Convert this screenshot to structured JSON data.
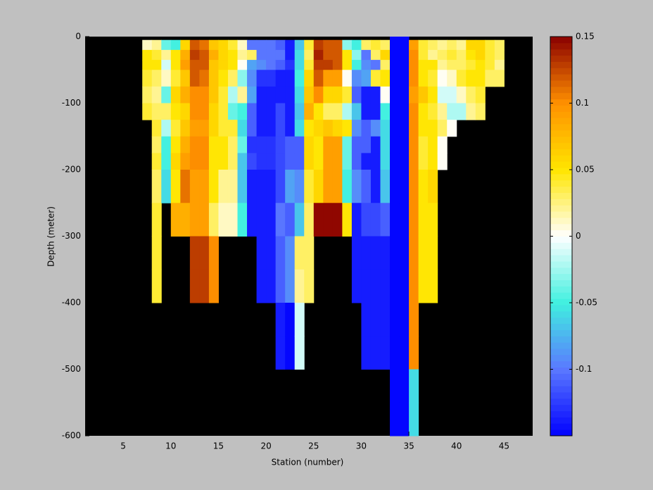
{
  "chart_data": {
    "type": "heatmap",
    "x_label": "Station (number)",
    "y_label": "Depth (meter)",
    "xlim": [
      1,
      48
    ],
    "xticks": [
      5,
      10,
      15,
      20,
      25,
      30,
      35,
      40,
      45
    ],
    "ylim": [
      -600,
      0
    ],
    "yticks": [
      0,
      -100,
      -200,
      -300,
      -400,
      -500,
      -600
    ],
    "clim": [
      -0.15,
      0.15
    ],
    "cticks": [
      0.15,
      0.1,
      0.05,
      0,
      -0.05,
      -0.1
    ],
    "colormap": [
      "#0000ff",
      "#5a78ff",
      "#40f0e0",
      "#ffffff",
      "#ffe600",
      "#ff9000",
      "#8b0000"
    ],
    "background": "#000000",
    "xbins": [
      7,
      8,
      9,
      10,
      11,
      12,
      13,
      14,
      15,
      16,
      17,
      18,
      19,
      20,
      21,
      22,
      23,
      24,
      25,
      26,
      27,
      28,
      29,
      30,
      31,
      32,
      33,
      34,
      35,
      36,
      37,
      38,
      39,
      40,
      41,
      42,
      43,
      44,
      45
    ],
    "ybins": [
      0,
      -5,
      -20,
      -35,
      -50,
      -75,
      -100,
      -125,
      -150,
      -175,
      -200,
      -250,
      -300,
      -350,
      -400,
      -450,
      -500,
      -550,
      -600
    ],
    "z": [
      [
        null,
        0.01,
        0.05,
        0.05,
        0.04,
        0.03,
        0.04,
        null,
        null,
        null,
        null,
        null,
        null,
        null,
        null,
        null,
        null,
        null
      ],
      [
        null,
        0.02,
        0.04,
        0.05,
        0.03,
        0.02,
        0.03,
        0.04,
        0.03,
        0.04,
        0.03,
        0.04,
        0.04,
        0.04,
        null,
        null,
        null,
        null
      ],
      [
        null,
        -0.04,
        0.02,
        -0.01,
        0.01,
        -0.04,
        0.03,
        -0.02,
        -0.05,
        -0.05,
        -0.06,
        null,
        null,
        null,
        null,
        null,
        null,
        null
      ],
      [
        null,
        -0.05,
        0.05,
        0.05,
        0.04,
        0.06,
        0.05,
        0.04,
        0.05,
        0.06,
        0.05,
        0.08,
        null,
        null,
        null,
        null,
        null,
        null
      ],
      [
        null,
        0.06,
        0.08,
        0.09,
        0.07,
        0.08,
        0.06,
        0.07,
        0.08,
        0.09,
        0.11,
        0.08,
        null,
        null,
        null,
        null,
        null,
        null
      ],
      [
        null,
        0.12,
        0.13,
        0.12,
        0.12,
        0.1,
        0.1,
        0.09,
        0.1,
        0.1,
        0.09,
        0.09,
        0.13,
        0.13,
        null,
        null,
        null,
        null
      ],
      [
        null,
        0.11,
        0.12,
        0.12,
        0.11,
        0.1,
        0.1,
        0.09,
        0.1,
        0.1,
        0.09,
        0.09,
        0.13,
        0.13,
        null,
        null,
        null,
        null
      ],
      [
        null,
        0.07,
        0.08,
        0.07,
        0.07,
        0.07,
        0.06,
        0.06,
        0.05,
        0.05,
        0.05,
        0.03,
        0.1,
        0.1,
        null,
        null,
        null,
        null
      ],
      [
        null,
        0.06,
        0.06,
        0.06,
        0.05,
        0.04,
        0.04,
        0.04,
        0.05,
        0.05,
        0.02,
        0.01,
        null,
        null,
        null,
        null,
        null,
        null
      ],
      [
        null,
        0.04,
        0.05,
        0.05,
        0.03,
        -0.02,
        -0.04,
        0.04,
        0.03,
        0.03,
        0.02,
        0.01,
        null,
        null,
        null,
        null,
        null,
        null
      ],
      [
        null,
        0.01,
        0.02,
        0,
        -0.03,
        0.02,
        -0.05,
        -0.06,
        -0.04,
        -0.07,
        -0.07,
        -0.05,
        null,
        null,
        null,
        null,
        null,
        null
      ],
      [
        null,
        -0.1,
        0.03,
        -0.08,
        -0.09,
        -0.08,
        -0.11,
        -0.11,
        -0.13,
        -0.12,
        -0.14,
        -0.14,
        null,
        null,
        null,
        null,
        null,
        null
      ],
      [
        null,
        -0.1,
        -0.1,
        -0.09,
        -0.13,
        -0.14,
        -0.14,
        -0.14,
        -0.13,
        -0.13,
        -0.14,
        -0.14,
        -0.14,
        -0.14,
        null,
        null,
        null,
        null
      ],
      [
        null,
        -0.1,
        -0.1,
        -0.1,
        -0.13,
        -0.14,
        -0.14,
        -0.14,
        -0.13,
        -0.13,
        -0.14,
        -0.14,
        -0.14,
        -0.14,
        null,
        null,
        null,
        null
      ],
      [
        null,
        -0.11,
        -0.1,
        -0.11,
        -0.14,
        -0.14,
        -0.12,
        -0.12,
        -0.12,
        -0.12,
        -0.12,
        -0.1,
        -0.11,
        -0.11,
        -0.14,
        -0.14,
        null,
        null
      ],
      [
        null,
        -0.14,
        -0.14,
        -0.13,
        -0.14,
        -0.14,
        -0.14,
        -0.14,
        -0.11,
        -0.11,
        -0.08,
        -0.11,
        -0.09,
        -0.09,
        -0.15,
        -0.15,
        null,
        null
      ],
      [
        null,
        -0.07,
        -0.06,
        -0.06,
        -0.05,
        -0.06,
        -0.07,
        -0.06,
        -0.11,
        -0.11,
        -0.09,
        -0.07,
        0.03,
        0.02,
        -0.01,
        -0.01,
        null,
        null
      ],
      [
        null,
        0.04,
        0.03,
        0.04,
        0.06,
        0.07,
        0.08,
        0.05,
        0.06,
        0.06,
        0.04,
        0.03,
        0.03,
        0.03,
        null,
        null,
        null,
        null
      ],
      [
        null,
        0.13,
        0.14,
        0.13,
        0.12,
        0.1,
        0.05,
        0.06,
        0.05,
        0.05,
        0.06,
        0.15,
        null,
        null,
        null,
        null,
        null,
        null
      ],
      [
        null,
        0.12,
        0.12,
        0.13,
        0.09,
        0.06,
        0.03,
        0.07,
        0.09,
        0.09,
        0.09,
        0.15,
        null,
        null,
        null,
        null,
        null,
        null
      ],
      [
        null,
        0.12,
        0.12,
        0.12,
        0.09,
        0.06,
        0.03,
        0.06,
        0.09,
        0.09,
        0.09,
        0.15,
        null,
        null,
        null,
        null,
        null,
        null
      ],
      [
        null,
        -0.03,
        0.05,
        0.05,
        0,
        0.04,
        -0.02,
        0.05,
        -0.04,
        -0.04,
        -0.05,
        0.05,
        null,
        null,
        null,
        null,
        null,
        null
      ],
      [
        null,
        -0.05,
        -0.03,
        -0.05,
        -0.09,
        -0.11,
        -0.07,
        -0.09,
        -0.11,
        -0.11,
        -0.09,
        -0.14,
        -0.14,
        -0.14,
        null,
        null,
        null,
        null
      ],
      [
        null,
        0.03,
        -0.1,
        -0.09,
        -0.08,
        -0.14,
        -0.14,
        -0.11,
        -0.11,
        -0.14,
        -0.11,
        -0.12,
        -0.14,
        -0.14,
        -0.14,
        -0.14,
        null,
        null
      ],
      [
        null,
        0.04,
        0.03,
        -0.1,
        0.04,
        -0.14,
        -0.14,
        -0.09,
        -0.14,
        -0.14,
        -0.14,
        -0.12,
        -0.14,
        -0.14,
        -0.14,
        -0.14,
        null,
        null
      ],
      [
        null,
        0.03,
        0.06,
        0.03,
        0.05,
        0,
        -0.05,
        -0.06,
        -0.06,
        -0.06,
        -0.07,
        -0.11,
        -0.14,
        -0.14,
        -0.14,
        -0.14,
        null,
        null
      ],
      [
        -0.15,
        -0.15,
        -0.15,
        -0.15,
        -0.15,
        -0.15,
        -0.15,
        -0.15,
        -0.15,
        -0.15,
        -0.15,
        -0.15,
        -0.15,
        -0.15,
        -0.15,
        -0.15,
        -0.15,
        -0.15
      ],
      [
        -0.15,
        -0.15,
        -0.15,
        -0.15,
        -0.15,
        -0.15,
        -0.15,
        -0.15,
        -0.15,
        -0.15,
        -0.15,
        -0.15,
        -0.15,
        -0.15,
        -0.15,
        -0.15,
        -0.15,
        -0.15
      ],
      [
        null,
        0.09,
        0.1,
        0.1,
        0.1,
        0.09,
        0.1,
        0.1,
        0.1,
        0.1,
        0.1,
        0.1,
        0.1,
        0.1,
        0.1,
        0.1,
        -0.06,
        -0.06
      ],
      [
        null,
        0.04,
        0.04,
        0.05,
        0.05,
        0.07,
        0.05,
        0.05,
        0.04,
        0.04,
        0.05,
        0.05,
        0.05,
        0.05,
        null,
        null,
        null,
        null
      ],
      [
        null,
        0.03,
        0.02,
        0.05,
        0.04,
        0.05,
        0.04,
        0.05,
        0.05,
        0.05,
        0.06,
        0.05,
        0.05,
        0.05,
        null,
        null,
        null,
        null
      ],
      [
        null,
        0.02,
        0.03,
        0.02,
        0,
        -0.01,
        0.02,
        0.03,
        0,
        0,
        null,
        null,
        null,
        null,
        null,
        null,
        null,
        null
      ],
      [
        null,
        0.03,
        0.04,
        0.03,
        0.01,
        -0.01,
        -0.02,
        0,
        null,
        null,
        null,
        null,
        null,
        null,
        null,
        null,
        null,
        null
      ],
      [
        null,
        0.02,
        0.03,
        0.03,
        0.04,
        0.01,
        -0.02,
        null,
        null,
        null,
        null,
        null,
        null,
        null,
        null,
        null,
        null,
        null
      ],
      [
        null,
        0.06,
        0.05,
        0.04,
        0.05,
        0.03,
        0.02,
        null,
        null,
        null,
        null,
        null,
        null,
        null,
        null,
        null,
        null,
        null
      ],
      [
        null,
        0.06,
        0.06,
        0.05,
        0.05,
        0.04,
        0.03,
        null,
        null,
        null,
        null,
        null,
        null,
        null,
        null,
        null,
        null,
        null
      ],
      [
        null,
        0.04,
        0.04,
        0.04,
        0.03,
        null,
        null,
        null,
        null,
        null,
        null,
        null,
        null,
        null,
        null,
        null,
        null,
        null
      ],
      [
        null,
        0.03,
        0.03,
        0.02,
        0.03,
        null,
        null,
        null,
        null,
        null,
        null,
        null,
        null,
        null,
        null,
        null,
        null,
        null
      ]
    ]
  }
}
